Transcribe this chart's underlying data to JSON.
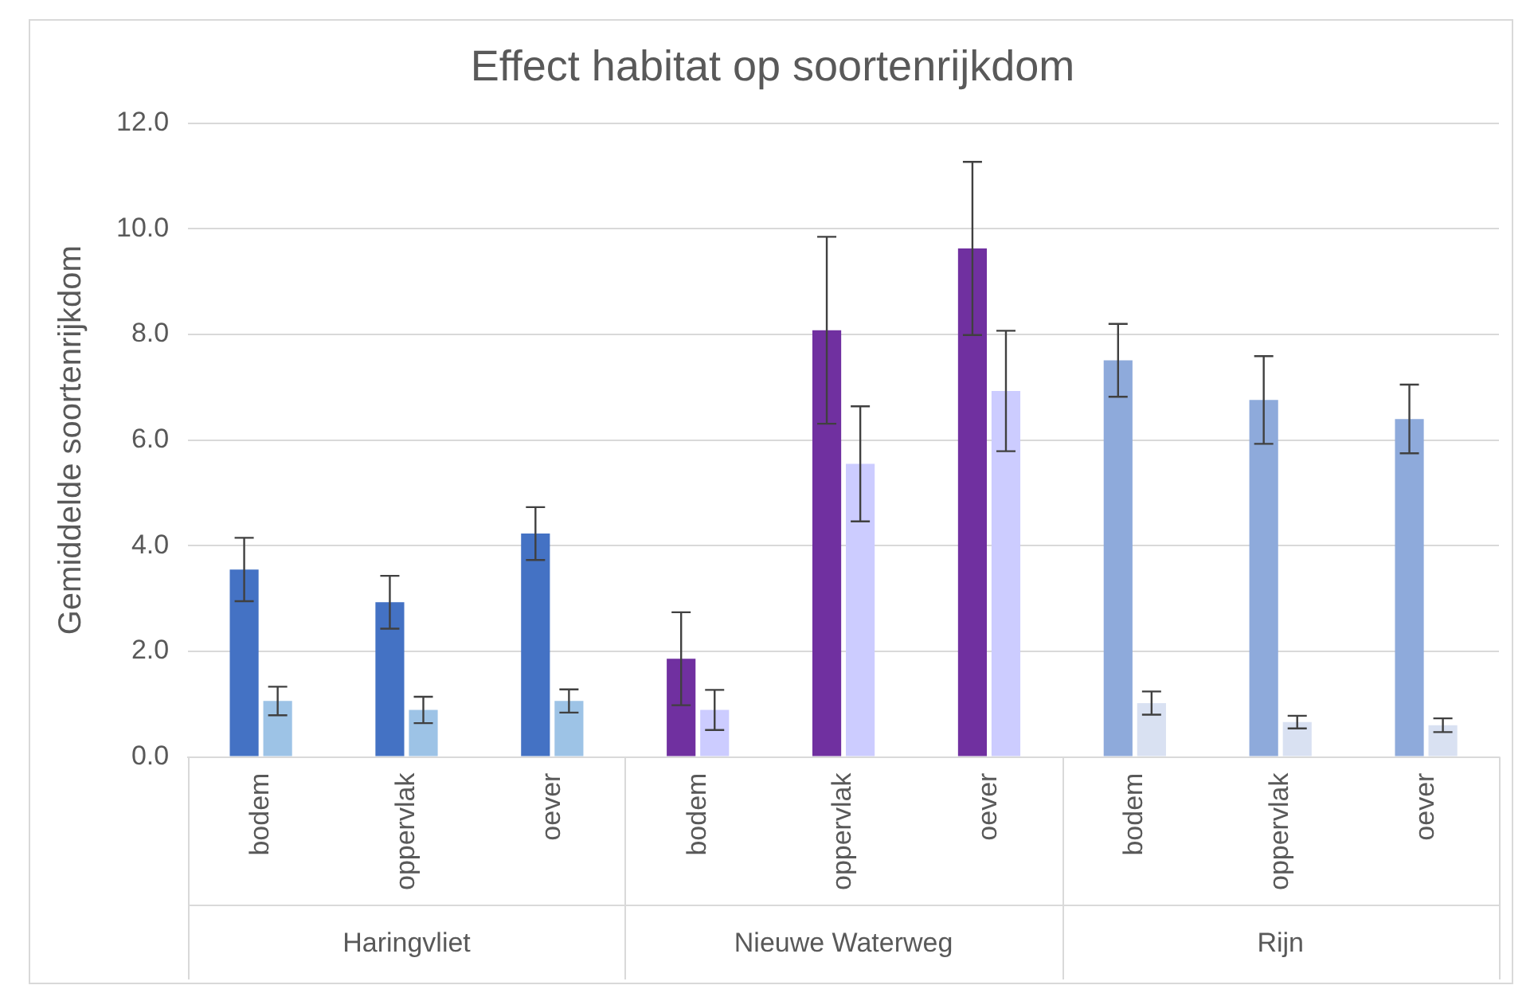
{
  "chart_data": {
    "type": "bar",
    "title": "Effect habitat op soortenrijkdom",
    "ylabel": "Gemiddelde soortenrijkdom",
    "categories": [
      "bodem",
      "oppervlak",
      "oever",
      "bodem",
      "oppervlak",
      "oever",
      "bodem",
      "oppervlak",
      "oever"
    ],
    "annotations": [
      "Haringvliet",
      "Nieuwe Waterweg",
      "Rijn"
    ],
    "series": [
      {
        "colors": [
          "#4472c4",
          "#4472c4",
          "#4472c4",
          "#7030a0",
          "#7030a0",
          "#7030a0",
          "#8eaadb",
          "#8eaadb",
          "#8eaadb"
        ],
        "values": [
          3.55,
          2.93,
          4.23,
          1.86,
          8.08,
          9.63,
          7.51,
          6.76,
          6.4
        ],
        "errors": [
          0.6,
          0.5,
          0.5,
          0.88,
          1.77,
          1.64,
          0.69,
          0.83,
          0.65
        ]
      },
      {
        "colors": [
          "#9dc3e6",
          "#9dc3e6",
          "#9dc3e6",
          "#ccccff",
          "#ccccff",
          "#ccccff",
          "#d9e1f2",
          "#d9e1f2",
          "#d9e1f2"
        ],
        "values": [
          1.06,
          0.89,
          1.06,
          0.89,
          5.55,
          6.93,
          1.02,
          0.66,
          0.6
        ],
        "errors": [
          0.27,
          0.25,
          0.22,
          0.38,
          1.09,
          1.14,
          0.22,
          0.12,
          0.13
        ]
      }
    ],
    "ylim": [
      0,
      12
    ],
    "yticks": [
      {
        "value": 0,
        "label": "0.0"
      },
      {
        "value": 2,
        "label": "2.0"
      },
      {
        "value": 4,
        "label": "4.0"
      },
      {
        "value": 6,
        "label": "6.0"
      },
      {
        "value": 8,
        "label": "8.0"
      },
      {
        "value": 10,
        "label": "10.0"
      },
      {
        "value": 12,
        "label": "12.0"
      }
    ],
    "grid": "y"
  }
}
